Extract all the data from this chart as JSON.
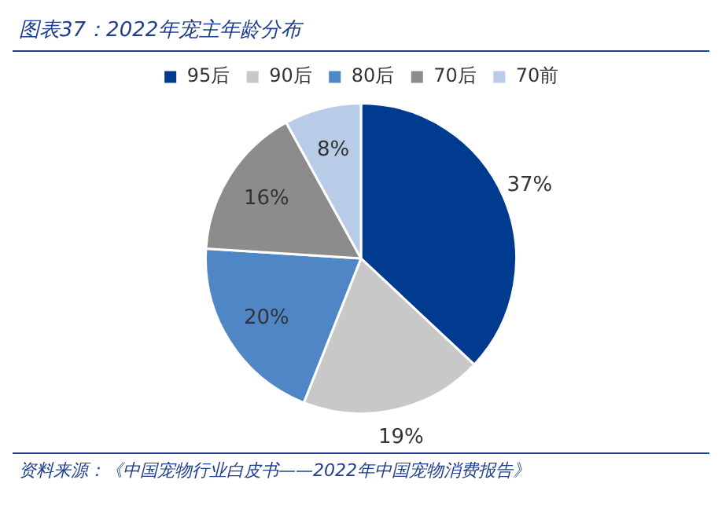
{
  "chart_data": {
    "type": "pie",
    "title": "图表37：2022年宠主年龄分布",
    "categories": [
      "95后",
      "90后",
      "80后",
      "70后",
      "70前"
    ],
    "values": [
      37,
      19,
      20,
      16,
      8
    ],
    "colors": [
      "#003b90",
      "#c8c8c8",
      "#4f86c6",
      "#8c8c8c",
      "#b8cce8"
    ],
    "value_labels": [
      "37%",
      "19%",
      "20%",
      "16%",
      "8%"
    ],
    "legend": "top",
    "annotations": [
      "资料来源：《中国宠物行业白皮书——2022年中国宠物消费报告》"
    ]
  }
}
